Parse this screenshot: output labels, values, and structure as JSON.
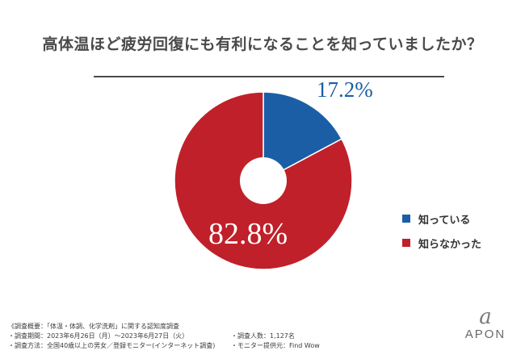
{
  "title": "高体温ほど疲労回復にも有利になることを知っていましたか？",
  "chart_data": {
    "type": "pie",
    "donut": true,
    "categories": [
      "知っている",
      "知らなかった"
    ],
    "values": [
      17.2,
      82.8
    ],
    "value_labels": [
      "17.2%",
      "82.8%"
    ],
    "colors": [
      "#1b5ea6",
      "#c0202a"
    ],
    "legend_position": "right",
    "legend": [
      "知っている",
      "知らなかった"
    ]
  },
  "notes": {
    "line1": "《調査概要：「体温・体調、化学洗剤」に関する認知度調査",
    "line2": "・調査期間：2023年6月26日（月）～2023年6月27日（火）",
    "line3": "・調査方法：全国40歳以上の男女／登録モニター(インターネット調査)",
    "line4": "・調査人数：1,127名",
    "line5": "・モニター提供元：Find Wow"
  },
  "logo": {
    "mark": "a",
    "text": "APON"
  }
}
